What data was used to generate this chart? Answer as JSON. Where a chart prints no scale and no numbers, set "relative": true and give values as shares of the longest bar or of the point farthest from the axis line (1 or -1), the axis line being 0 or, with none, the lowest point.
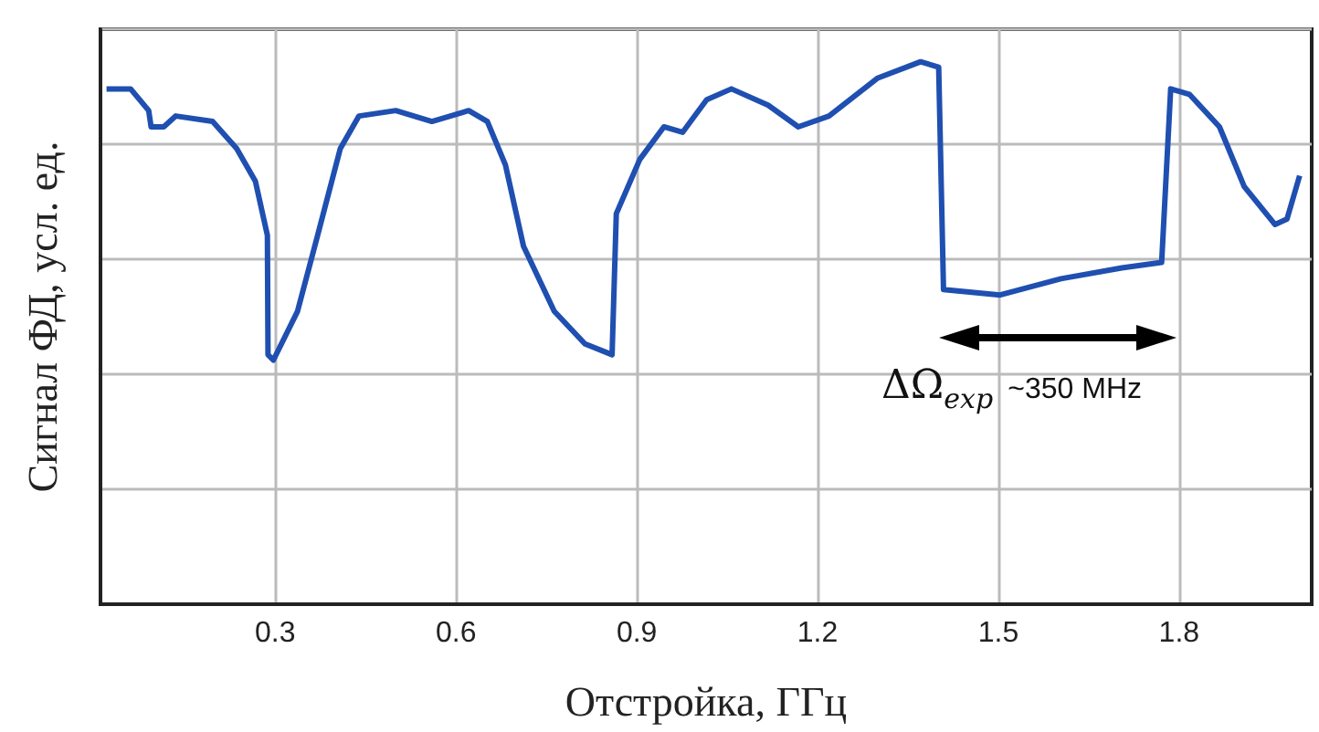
{
  "chart_data": {
    "type": "line",
    "relative": true,
    "xlabel": "Отстройка, ГГц",
    "ylabel": "Сигнал ФД, усл. ед.",
    "xlim": [
      0.01,
      2.02
    ],
    "xticks": [
      0.3,
      0.6,
      0.9,
      1.2,
      1.5,
      1.8
    ],
    "grid": true,
    "marker": "none",
    "line_style": "solid",
    "annotations": [
      "ΔΩ$_{exp}$",
      "~350 MHz"
    ],
    "series": [
      {
        "color": "#1f4fb0",
        "x": [
          0.02,
          0.06,
          0.09,
          0.094,
          0.115,
          0.135,
          0.196,
          0.236,
          0.267,
          0.287,
          0.288,
          0.297,
          0.337,
          0.368,
          0.408,
          0.439,
          0.5,
          0.56,
          0.621,
          0.652,
          0.682,
          0.712,
          0.763,
          0.814,
          0.859,
          0.866,
          0.905,
          0.945,
          0.976,
          1.016,
          1.057,
          1.118,
          1.168,
          1.219,
          1.3,
          1.371,
          1.401,
          1.409,
          1.503,
          1.604,
          1.705,
          1.771,
          1.786,
          1.817,
          1.867,
          1.908,
          1.959,
          1.979,
          2.0
        ],
        "values": [
          0.95,
          0.95,
          0.91,
          0.88,
          0.88,
          0.9,
          0.89,
          0.84,
          0.78,
          0.68,
          0.46,
          0.45,
          0.54,
          0.67,
          0.84,
          0.9,
          0.91,
          0.89,
          0.91,
          0.89,
          0.81,
          0.66,
          0.54,
          0.48,
          0.46,
          0.72,
          0.82,
          0.88,
          0.87,
          0.93,
          0.95,
          0.92,
          0.88,
          0.9,
          0.97,
          1,
          0.99,
          0.58,
          0.57,
          0.6,
          0.62,
          0.63,
          0.95,
          0.94,
          0.88,
          0.77,
          0.7,
          0.71,
          0.79
        ]
      }
    ]
  }
}
